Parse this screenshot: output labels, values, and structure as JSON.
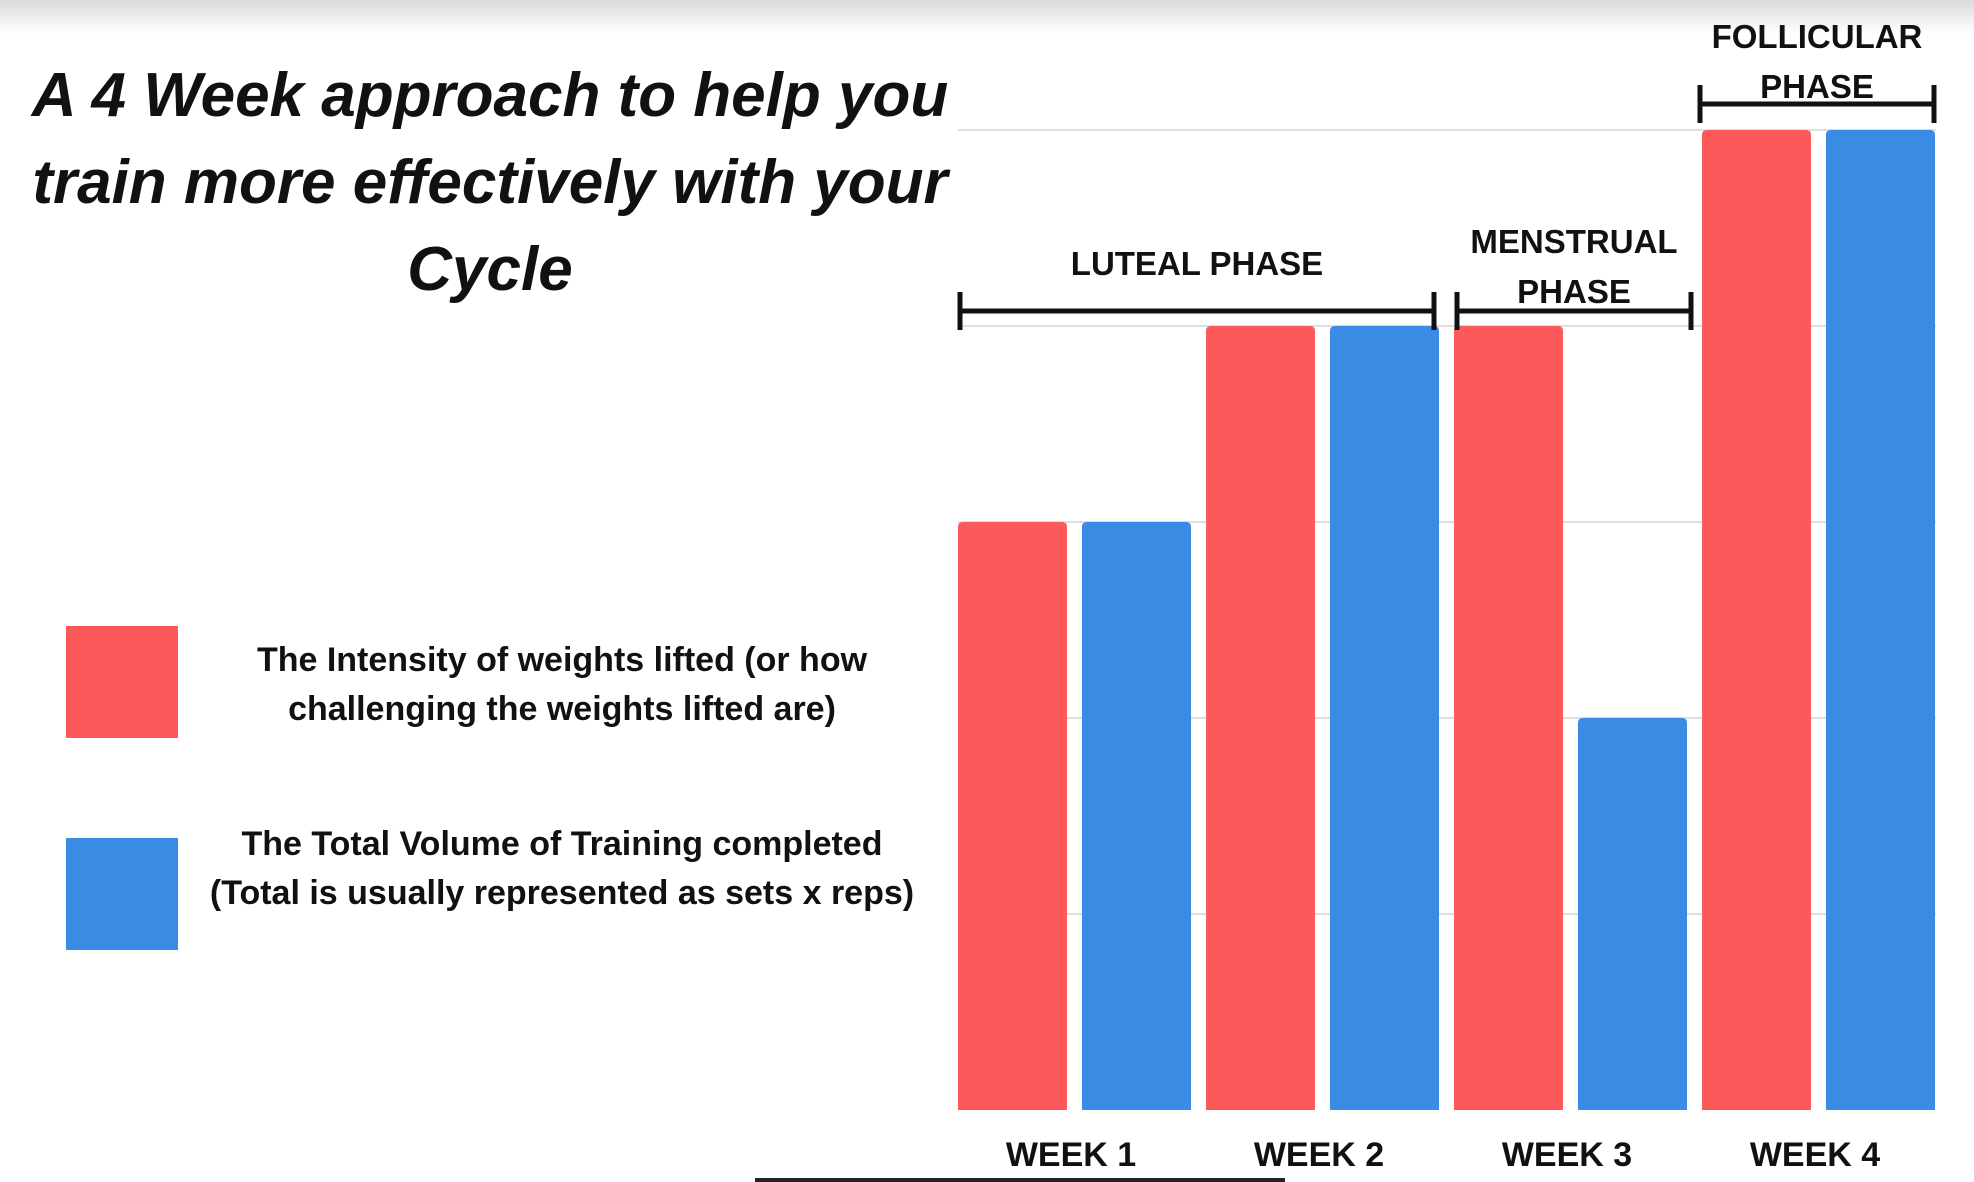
{
  "title": "A 4 Week approach to help you train more effectively with your Cycle",
  "legend": [
    {
      "label": "The Intensity of weights lifted (or how challenging the weights lifted are)",
      "color": "#fc5a5a"
    },
    {
      "label": "The Total Volume of Training completed (Total is usually represented as sets x reps)",
      "color": "#3a8be3"
    }
  ],
  "chart_data": {
    "type": "bar",
    "categories": [
      "WEEK 1",
      "WEEK 2",
      "WEEK 3",
      "WEEK 4"
    ],
    "series": [
      {
        "values": [
          3,
          4,
          4,
          5
        ],
        "color": "#fc5a5a"
      },
      {
        "values": [
          3,
          4,
          2,
          5
        ],
        "color": "#3a8be3"
      }
    ],
    "ylim": [
      0,
      5
    ],
    "grid": true,
    "phases": [
      {
        "label": "LUTEAL PHASE",
        "start": 0,
        "end": 1
      },
      {
        "label": "MENSTRUAL PHASE",
        "start": 2,
        "end": 2
      },
      {
        "label": "FOLLICULAR PHASE",
        "start": 3,
        "end": 3
      }
    ]
  }
}
